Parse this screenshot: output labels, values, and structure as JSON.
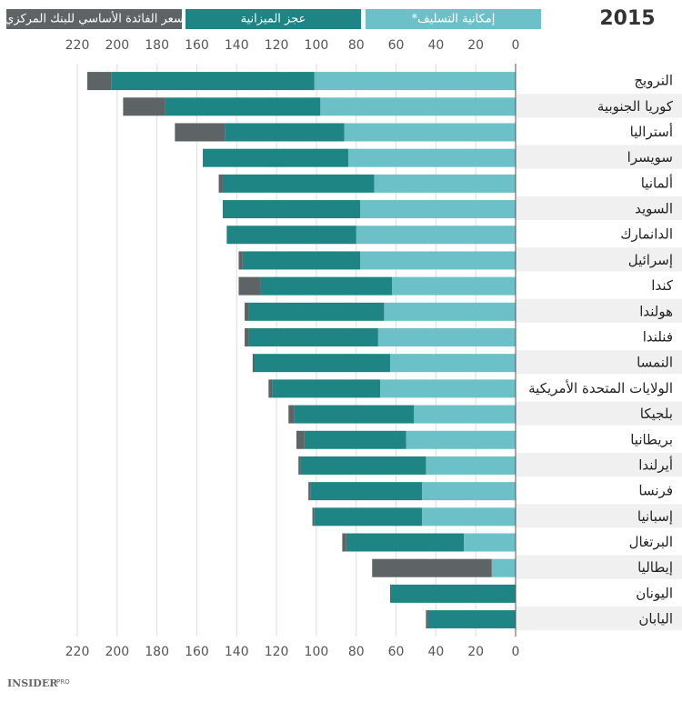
{
  "chart_data": {
    "type": "stacked-bar",
    "orientation": "horizontal",
    "direction": "rtl",
    "title": "2015",
    "categories": [
      "النرويج",
      "كوريا الجنوبية",
      "أستراليا",
      "سويسرا",
      "ألمانيا",
      "السويد",
      "الدانمارك",
      "إسرائيل",
      "كندا",
      "هولندا",
      "فنلندا",
      "النمسا",
      "الولايات المتحدة الأمريكية",
      "بلجيكا",
      "بريطانيا",
      "أيرلندا",
      "فرنسا",
      "إسبانيا",
      "البرتغال",
      "إيطاليا",
      "اليونان",
      "اليابان"
    ],
    "series": [
      {
        "name": "إمكانية التسليف*",
        "color": "#6cc1c8",
        "values": [
          101,
          98,
          86,
          84,
          71,
          78,
          80,
          78,
          62,
          66,
          69,
          63,
          68,
          51,
          55,
          45,
          47,
          47,
          26,
          12,
          0,
          0
        ]
      },
      {
        "name": "عجز الميزانية",
        "color": "#1e8584",
        "values": [
          102,
          78,
          60,
          73,
          76,
          69,
          65,
          59,
          66,
          68,
          65,
          68,
          54,
          60,
          51,
          63,
          56,
          54,
          59,
          0,
          63,
          44
        ]
      },
      {
        "name": "سعر الفائدة الأساسي للبنك المركزي",
        "color": "#5e6365",
        "values": [
          12,
          21,
          25,
          0,
          2,
          0,
          0,
          2,
          11,
          2,
          2,
          1,
          2,
          3,
          4,
          1,
          1,
          1,
          2,
          60,
          0,
          1
        ]
      }
    ],
    "xlim": [
      0,
      220
    ],
    "xticks": [
      0,
      20,
      40,
      60,
      80,
      100,
      120,
      140,
      160,
      180,
      200,
      220
    ],
    "grid": true,
    "logo": "INSIDER",
    "logo_sub": "PRO"
  }
}
